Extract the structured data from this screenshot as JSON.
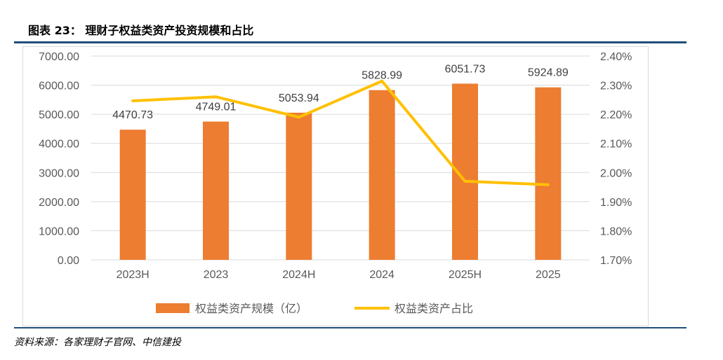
{
  "title": "图表 23：  理财子权益类资产投资规模和占比",
  "source": "资料来源：各家理财子官网、中信建投",
  "chart_data": {
    "type": "bar",
    "categories": [
      "2023H",
      "2023",
      "2024H",
      "2024",
      "2025H",
      "2025"
    ],
    "series": [
      {
        "name": "权益类资产规模（亿）",
        "type": "bar",
        "axis": "left",
        "color": "#ed7d31",
        "values": [
          4470.73,
          4749.01,
          5053.94,
          5828.99,
          6051.73,
          5924.89
        ],
        "labels": [
          "4470.73",
          "4749.01",
          "5053.94",
          "5828.99",
          "6051.73",
          "5924.89"
        ]
      },
      {
        "name": "权益类资产占比",
        "type": "line",
        "axis": "right",
        "color": "#ffc000",
        "values": [
          2.246,
          2.26,
          2.19,
          2.314,
          1.97,
          1.958
        ]
      }
    ],
    "ylim": [
      0,
      7000
    ],
    "yticks": [
      "0.00",
      "1000.00",
      "2000.00",
      "3000.00",
      "4000.00",
      "5000.00",
      "6000.00",
      "7000.00"
    ],
    "y2lim": [
      1.7,
      2.4
    ],
    "y2ticks": [
      "1.70%",
      "1.80%",
      "1.90%",
      "2.00%",
      "2.10%",
      "2.20%",
      "2.30%",
      "2.40%"
    ],
    "legend": "bottom",
    "grid": true
  }
}
